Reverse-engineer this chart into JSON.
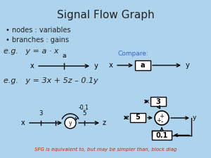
{
  "title": "Signal Flow Graph",
  "title_fontsize": 11,
  "bg_color": "#aed4ed",
  "bullet1": "nodes : variables",
  "bullet2": "branches : gains",
  "eg1_text": "e.g.   y = a · x",
  "eg2_text": "e.g.   y = 3x + 5z – 0.1y",
  "compare_text": "Compare:",
  "sfg_text": "SFG is equivalent to, but may be simpler than, block diag",
  "text_color_blue": "#3366cc",
  "text_color_dark": "#222222",
  "text_color_sfg": "#cc2200"
}
